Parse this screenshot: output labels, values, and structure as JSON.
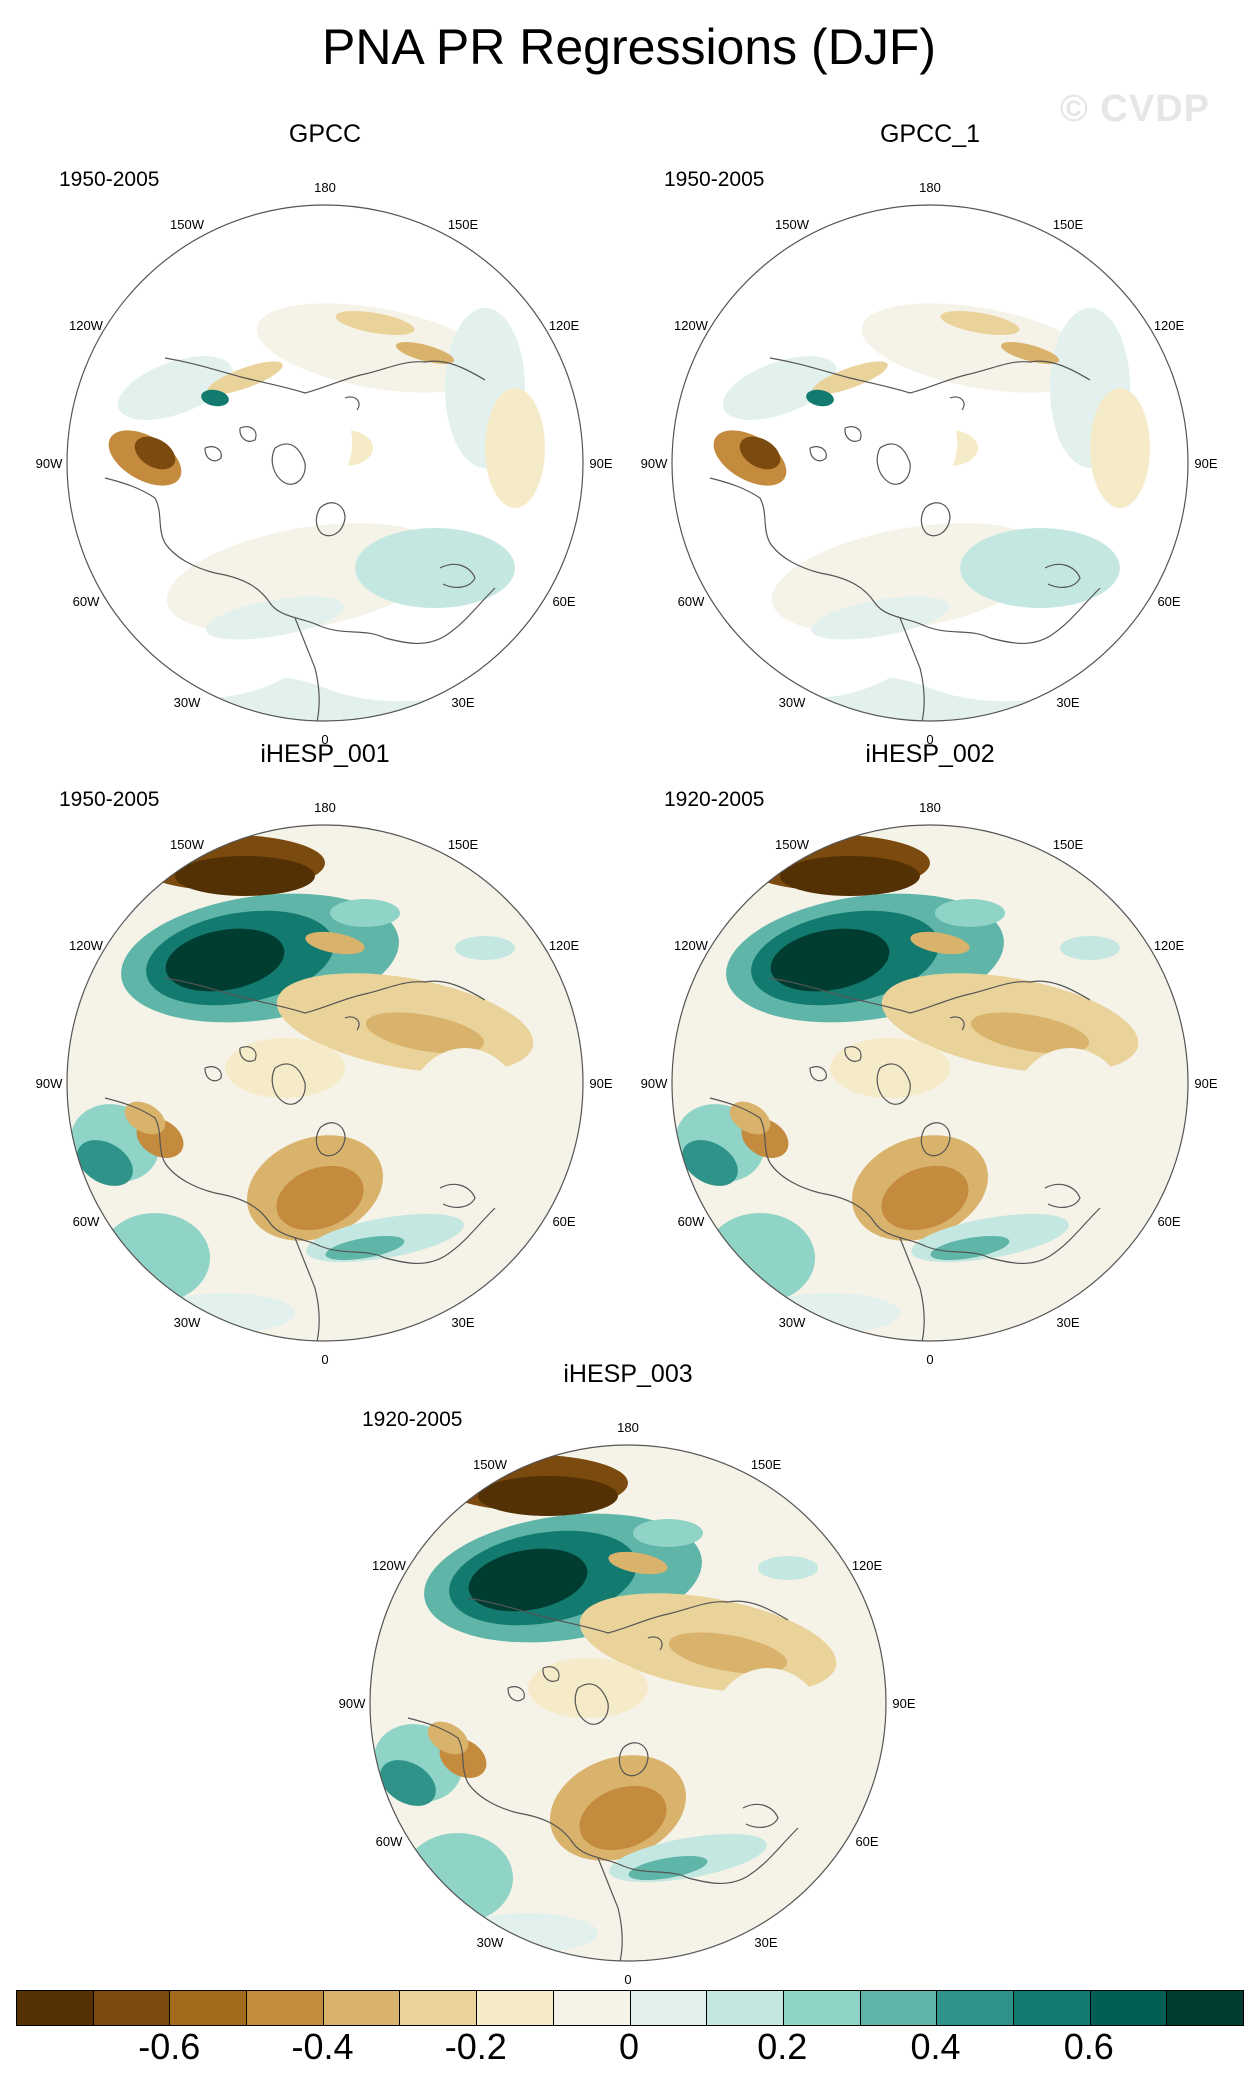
{
  "title": "PNA PR Regressions (DJF)",
  "watermark": "© CVDP",
  "lon_labels": [
    "180",
    "150E",
    "120E",
    "90E",
    "60E",
    "30E",
    "0",
    "30W",
    "60W",
    "90W",
    "120W",
    "150W"
  ],
  "panels": [
    {
      "name": "GPCC",
      "period": "1950-2005",
      "style": "obs"
    },
    {
      "name": "GPCC_1",
      "period": "1950-2005",
      "style": "obs"
    },
    {
      "name": "iHESP_001",
      "period": "1950-2005",
      "style": "model"
    },
    {
      "name": "iHESP_002",
      "period": "1920-2005",
      "style": "model"
    },
    {
      "name": "iHESP_003",
      "period": "1920-2005",
      "style": "model"
    }
  ],
  "colorbar": {
    "colors": [
      "#543005",
      "#7a4a0e",
      "#a46b1f",
      "#c48a3d",
      "#d9b36b",
      "#ead39b",
      "#f6ebc8",
      "#f5f2e8",
      "#e2f0ee",
      "#c4e8e1",
      "#90d3c7",
      "#5fb5a8",
      "#2f938a",
      "#137a6f",
      "#015e54",
      "#003c30"
    ],
    "tick_labels": [
      "-0.6",
      "-0.4",
      "-0.2",
      "0",
      "0.2",
      "0.4",
      "0.6"
    ]
  },
  "colors": {
    "land_outline": "#555555",
    "map_border": "#555555",
    "missing": "#ffffff"
  }
}
